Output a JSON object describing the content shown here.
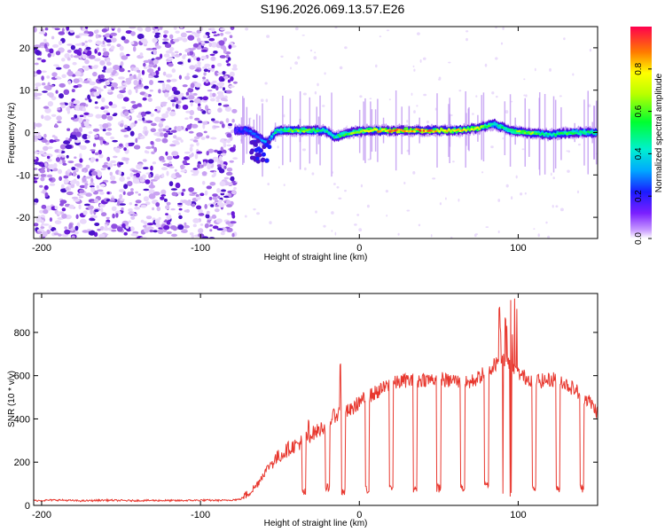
{
  "title": "S196.2026.069.13.57.E26",
  "chart_data": [
    {
      "type": "heatmap",
      "title": "S196.2026.069.13.57.E26",
      "xlabel": "Height of straight line (km)",
      "ylabel": "Frequency (Hz)",
      "xlim": [
        -205,
        150
      ],
      "ylim": [
        -25,
        25
      ],
      "xticks": [
        -200,
        -100,
        0,
        100
      ],
      "yticks": [
        -20,
        -10,
        0,
        10,
        20
      ],
      "noise_region_x": [
        -205,
        -78
      ],
      "signal_trace": {
        "x": [
          -78,
          -70,
          -62,
          -58,
          -52,
          -45,
          -35,
          -22,
          -15,
          -5,
          5,
          20,
          40,
          60,
          75,
          85,
          95,
          105,
          120,
          135,
          150
        ],
        "freq": [
          0.5,
          0.5,
          -1.5,
          -2.5,
          0.5,
          0.5,
          0.5,
          0.5,
          -1.0,
          0.0,
          0.5,
          0.5,
          0.5,
          0.5,
          1.0,
          2.0,
          0.5,
          0.0,
          -0.5,
          0.0,
          0.0
        ],
        "amplitude": [
          0.2,
          0.3,
          0.3,
          0.4,
          0.5,
          0.6,
          0.7,
          0.5,
          0.5,
          0.7,
          0.8,
          0.95,
          0.95,
          0.85,
          0.8,
          0.5,
          0.6,
          0.75,
          0.5,
          0.6,
          0.5
        ]
      },
      "colorbar": {
        "label": "Normalized spectral amplitude",
        "range": [
          0,
          1
        ],
        "ticks": [
          0.0,
          0.2,
          0.4,
          0.6,
          0.8
        ],
        "tick_labels": [
          "0.0",
          "0.2",
          "0.4",
          "0.6",
          "0.8"
        ]
      }
    },
    {
      "type": "line",
      "xlabel": "Height of straight line (km)",
      "ylabel": "SNR (10 * v/v)",
      "xlim": [
        -205,
        150
      ],
      "ylim": [
        0,
        980
      ],
      "xticks": [
        -200,
        -100,
        0,
        100
      ],
      "yticks": [
        0,
        200,
        400,
        600,
        800
      ],
      "color": "#e8382f",
      "series": [
        {
          "name": "SNR",
          "x": [
            -205,
            -190,
            -175,
            -160,
            -145,
            -130,
            -115,
            -100,
            -85,
            -75,
            -70,
            -65,
            -60,
            -55,
            -50,
            -45,
            -40,
            -35,
            -30,
            -25,
            -20,
            -15,
            -10,
            -5,
            0,
            5,
            10,
            15,
            20,
            25,
            30,
            35,
            40,
            45,
            50,
            55,
            60,
            65,
            70,
            75,
            80,
            85,
            90,
            95,
            100,
            105,
            110,
            115,
            120,
            125,
            130,
            135,
            140,
            145,
            150
          ],
          "y": [
            22,
            25,
            21,
            24,
            22,
            23,
            22,
            24,
            23,
            28,
            55,
            90,
            150,
            200,
            230,
            260,
            280,
            300,
            330,
            350,
            380,
            420,
            430,
            440,
            480,
            500,
            520,
            540,
            560,
            570,
            580,
            570,
            585,
            580,
            590,
            575,
            580,
            560,
            570,
            590,
            620,
            650,
            690,
            640,
            610,
            590,
            580,
            575,
            580,
            590,
            560,
            540,
            510,
            480,
            430
          ]
        }
      ],
      "dips": [
        {
          "x": -35,
          "y": 40
        },
        {
          "x": -20,
          "y": 60
        },
        {
          "x": -10,
          "y": 40
        },
        {
          "x": 5,
          "y": 50
        },
        {
          "x": 20,
          "y": 60
        },
        {
          "x": 35,
          "y": 60
        },
        {
          "x": 50,
          "y": 60
        },
        {
          "x": 65,
          "y": 60
        },
        {
          "x": 80,
          "y": 70
        },
        {
          "x": 110,
          "y": 60
        },
        {
          "x": 125,
          "y": 60
        },
        {
          "x": 140,
          "y": 60
        }
      ],
      "spikes": [
        {
          "x": -32,
          "y": 420
        },
        {
          "x": -12,
          "y": 670
        },
        {
          "x": 88,
          "y": 960
        },
        {
          "x": 92,
          "y": 880
        },
        {
          "x": 95,
          "y": 970
        }
      ]
    }
  ]
}
